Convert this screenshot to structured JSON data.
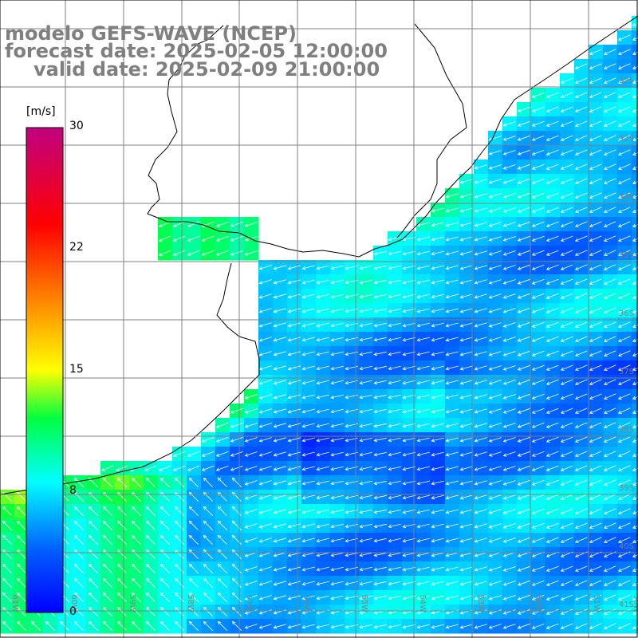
{
  "title": {
    "line1": "modelo GEFS-WAVE (NCEP)",
    "line2": "forecast date: 2025-02-05 12:00:00",
    "line3": "valid date: 2025-02-09 21:00:00"
  },
  "colorbar": {
    "units": "[m/s]",
    "ticks": [
      "30",
      "22",
      "15",
      "8",
      "0"
    ],
    "min": 0,
    "max": 30,
    "colors": [
      "#0000ff",
      "#0090ff",
      "#00ffff",
      "#00ff00",
      "#ffff00",
      "#ff8000",
      "#ff0000",
      "#c000a0"
    ]
  },
  "grid": {
    "lon_labels": [
      "61W",
      "60W",
      "59W",
      "58W",
      "57W",
      "56W",
      "55W",
      "54W",
      "53W",
      "52W",
      "51W",
      "50W"
    ],
    "lat_labels": [
      "32S",
      "33S",
      "34S",
      "35S",
      "36S",
      "37S",
      "38S",
      "39S",
      "40S",
      "41S"
    ]
  },
  "colors": {
    "land": "#ffffff",
    "coast": "#000000",
    "grid": "#808080",
    "arrow": "#ffffff",
    "title": "#7f7f7f"
  }
}
